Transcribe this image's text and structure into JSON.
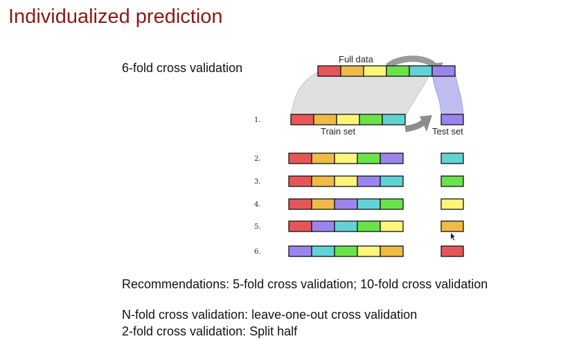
{
  "slide": {
    "title": "Individualized prediction",
    "subtitle": "6-fold cross validation",
    "recommendations": "Recommendations: 5-fold cross validation; 10-fold cross validation",
    "note_nfold": "N-fold cross validation: leave-one-out cross validation",
    "note_2fold": "2-fold cross validation: Split half"
  },
  "diagram": {
    "full_data_label": "Full data",
    "train_label": "Train set",
    "test_label": "Test set",
    "colors": {
      "red": "#e65658",
      "orange": "#efbb47",
      "yellow": "#fbf57a",
      "green": "#6ae34b",
      "cyan": "#62d2d4",
      "purple": "#9b85ec"
    },
    "full_data": [
      "red",
      "orange",
      "yellow",
      "green",
      "cyan",
      "purple"
    ],
    "folds": [
      {
        "label": "1.",
        "train": [
          "red",
          "orange",
          "yellow",
          "green",
          "cyan"
        ],
        "test": "purple"
      },
      {
        "label": "2.",
        "train": [
          "red",
          "orange",
          "yellow",
          "green",
          "purple"
        ],
        "test": "cyan"
      },
      {
        "label": "3.",
        "train": [
          "red",
          "orange",
          "yellow",
          "purple",
          "cyan"
        ],
        "test": "green"
      },
      {
        "label": "4.",
        "train": [
          "red",
          "orange",
          "purple",
          "cyan",
          "green"
        ],
        "test": "yellow"
      },
      {
        "label": "5.",
        "train": [
          "red",
          "purple",
          "cyan",
          "green",
          "yellow"
        ],
        "test": "orange"
      },
      {
        "label": "6.",
        "train": [
          "purple",
          "cyan",
          "green",
          "yellow",
          "orange"
        ],
        "test": "red"
      }
    ]
  }
}
